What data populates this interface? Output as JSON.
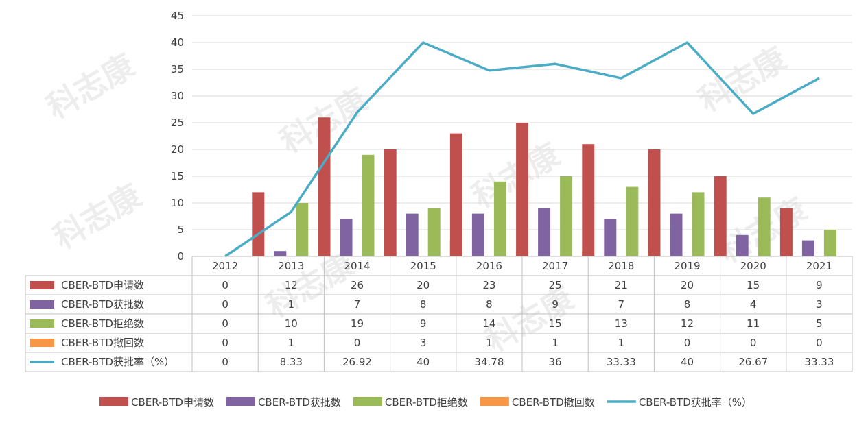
{
  "chart_data": {
    "type": "bar",
    "categories": [
      "2012",
      "2013",
      "2014",
      "2015",
      "2016",
      "2017",
      "2018",
      "2019",
      "2020",
      "2021"
    ],
    "ylim": [
      0,
      45
    ],
    "yticks": [
      0,
      5,
      10,
      15,
      20,
      25,
      30,
      35,
      40,
      45
    ],
    "grid": true,
    "legend_position": "bottom",
    "data_table": true,
    "series": [
      {
        "name": "CBER-BTD申请数",
        "kind": "bar",
        "color": "#c0504d",
        "values": [
          0,
          12,
          26,
          20,
          23,
          25,
          21,
          20,
          15,
          9
        ],
        "labels": [
          "0",
          "12",
          "26",
          "20",
          "23",
          "25",
          "21",
          "20",
          "15",
          "9"
        ]
      },
      {
        "name": "CBER-BTD获批数",
        "kind": "bar",
        "color": "#8064a2",
        "values": [
          0,
          1,
          7,
          8,
          8,
          9,
          7,
          8,
          4,
          3
        ],
        "labels": [
          "0",
          "1",
          "7",
          "8",
          "8",
          "9",
          "7",
          "8",
          "4",
          "3"
        ]
      },
      {
        "name": "CBER-BTD拒绝数",
        "kind": "bar",
        "color": "#9bbb59",
        "values": [
          0,
          10,
          19,
          9,
          14,
          15,
          13,
          12,
          11,
          5
        ],
        "labels": [
          "0",
          "10",
          "19",
          "9",
          "14",
          "15",
          "13",
          "12",
          "11",
          "5"
        ]
      },
      {
        "name": "CBER-BTD撤回数",
        "kind": "bar",
        "color": "#f79646",
        "values": [
          0,
          1,
          0,
          3,
          1,
          1,
          1,
          0,
          0,
          0
        ],
        "labels": [
          "0",
          "1",
          "0",
          "3",
          "1",
          "1",
          "1",
          "0",
          "0",
          "0"
        ]
      },
      {
        "name": "CBER-BTD获批率（%）",
        "kind": "line",
        "color": "#4bacc6",
        "values": [
          0,
          8.33,
          26.92,
          40,
          34.78,
          36,
          33.33,
          40,
          26.67,
          33.33
        ],
        "labels": [
          "0",
          "8.33",
          "26.92",
          "40",
          "34.78",
          "36",
          "33.33",
          "40",
          "26.67",
          "33.33"
        ]
      }
    ]
  },
  "watermark": {
    "text": "科志康"
  }
}
